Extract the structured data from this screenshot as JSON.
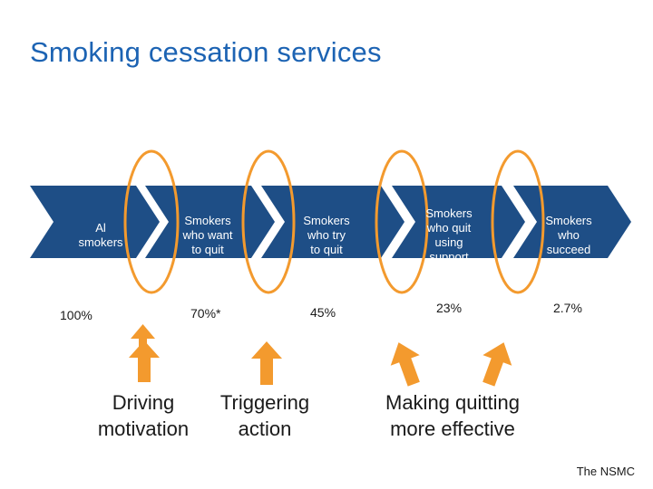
{
  "title": "Smoking cessation services",
  "stages": [
    {
      "label": "Al\nsmokers",
      "percent": "100%"
    },
    {
      "label": "Smokers\nwho want\nto quit",
      "percent": "70%*"
    },
    {
      "label": "Smokers\nwho try\nto quit",
      "percent": "45%"
    },
    {
      "label": "Smokers\nwho quit\nusing\nsupport",
      "percent": "23%"
    },
    {
      "label": "Smokers\nwho\nsucceed",
      "percent": "2.7%"
    }
  ],
  "levers": [
    {
      "label": "Driving\nmotivation"
    },
    {
      "label": "Triggering\naction"
    },
    {
      "label": "Making quitting\nmore effective"
    }
  ],
  "source": "The NSMC",
  "colors": {
    "title": "#1c63b3",
    "chevron": "#1e4e86",
    "highlight": "#f39a2e",
    "text": "#1a1a1a"
  }
}
